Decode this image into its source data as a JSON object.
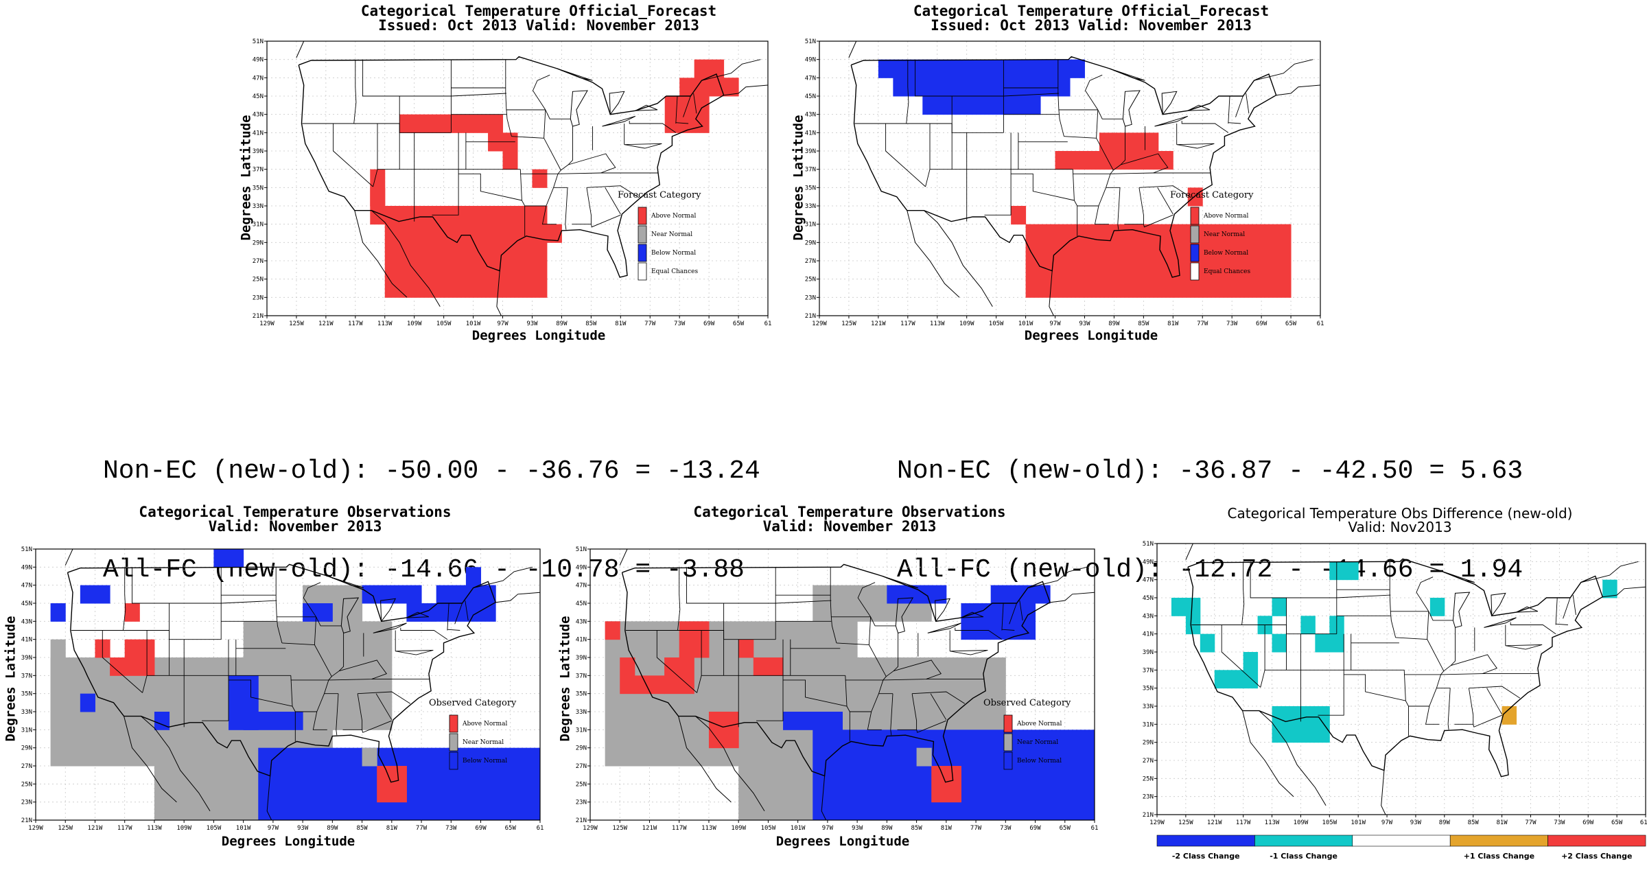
{
  "colors": {
    "above": "#f23c3c",
    "near": "#a8a8a8",
    "below": "#1a2eee",
    "minus1": "#12c8c8",
    "plus1": "#e4a42c",
    "ec": "#ffffff"
  },
  "forecast_old": {
    "title1": "Categorical Temperature Official_Forecast",
    "title2": "Issued: Oct 2013 Valid: November 2013",
    "ylabel": "Degrees Latitude",
    "xlabel": "Degrees Longitude",
    "legend_title": "Forecast Category",
    "legend": [
      "Above Normal",
      "Near Normal",
      "Below Normal",
      "Equal Chances"
    ],
    "regions": [
      {
        "cat": "above",
        "area": "Southwest, Southern Plains and Texas"
      },
      {
        "cat": "above",
        "area": "Northern New England"
      }
    ]
  },
  "forecast_new": {
    "title1": "Categorical Temperature Official_Forecast",
    "title2": "Issued: Oct 2013 Valid: November 2013",
    "ylabel": "Degrees Latitude",
    "xlabel": "Degrees Longitude",
    "legend_title": "Forecast Category",
    "legend": [
      "Above Normal",
      "Near Normal",
      "Below Normal",
      "Equal Chances"
    ],
    "regions": [
      {
        "cat": "below",
        "area": "Northern Rockies and Northern Plains"
      },
      {
        "cat": "above",
        "area": "Southern Plains and Southeast"
      }
    ]
  },
  "stats": {
    "old_line1": "Non-EC (new-old): -50.00 - -36.76 = -13.24",
    "old_line2": "All-FC (new-old): -14.66 - -10.78 = -3.88",
    "new_line1": "Non-EC (new-old): -36.87 - -42.50 = 5.63",
    "new_line2": "All-FC (new-old): -12.72 - -14.66 = 1.94"
  },
  "obs_old": {
    "title1": "Categorical Temperature Observations",
    "title2": "Valid: November 2013",
    "ylabel": "Degrees Latitude",
    "xlabel": "Degrees Longitude",
    "legend_title": "Observed Category",
    "legend": [
      "Above Normal",
      "Near Normal",
      "Below Normal"
    ]
  },
  "obs_new": {
    "title1": "Categorical Temperature Observations",
    "title2": "Valid: November 2013",
    "ylabel": "Degrees Latitude",
    "xlabel": "Degrees Longitude",
    "legend_title": "Observed Category",
    "legend": [
      "Above Normal",
      "Near Normal",
      "Below Normal"
    ]
  },
  "diff": {
    "title1": "Categorical Temperature Obs Difference (new-old)",
    "title2": "Valid: Nov2013",
    "colorbar": [
      "-2 Class Change",
      "-1 Class Change",
      "+1 Class Change",
      "+2 Class Change"
    ]
  },
  "axes": {
    "lat_ticks": [
      "21N",
      "23N",
      "25N",
      "27N",
      "29N",
      "31N",
      "33N",
      "35N",
      "37N",
      "39N",
      "41N",
      "43N",
      "45N",
      "47N",
      "49N",
      "51N"
    ],
    "lon_ticks": [
      "129W",
      "125W",
      "121W",
      "117W",
      "113W",
      "109W",
      "105W",
      "101W",
      "97W",
      "93W",
      "89W",
      "85W",
      "81W",
      "77W",
      "73W",
      "69W",
      "65W",
      "61"
    ],
    "lon_ticks_diff": [
      "129W",
      "125W",
      "121W",
      "117W",
      "113W",
      "109W",
      "105W",
      "101W",
      "97W",
      "93W",
      "89W",
      "85W",
      "81W",
      "77W",
      "73W",
      "69W",
      "65W",
      "61W"
    ]
  }
}
